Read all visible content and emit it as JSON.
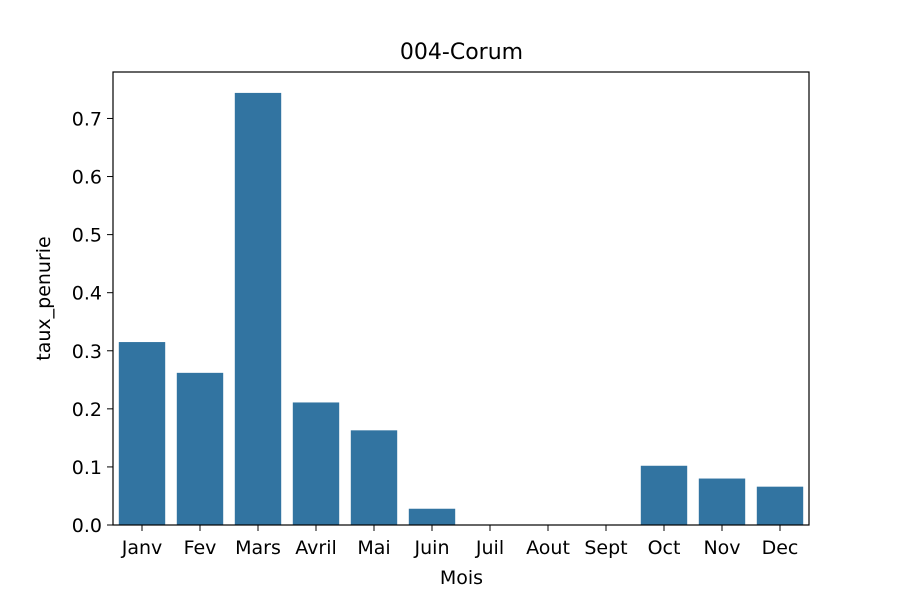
{
  "chart_data": {
    "type": "bar",
    "title": "004-Corum",
    "xlabel": "Mois",
    "ylabel": "taux_penurie",
    "categories": [
      "Janv",
      "Fev",
      "Mars",
      "Avril",
      "Mai",
      "Juin",
      "Juil",
      "Aout",
      "Sept",
      "Oct",
      "Nov",
      "Dec"
    ],
    "values": [
      0.315,
      0.262,
      0.744,
      0.211,
      0.163,
      0.028,
      0.0,
      0.0,
      0.0,
      0.102,
      0.08,
      0.066
    ],
    "ylim": [
      0,
      0.78
    ],
    "yticks": [
      "0.0",
      "0.1",
      "0.2",
      "0.3",
      "0.4",
      "0.5",
      "0.6",
      "0.7"
    ],
    "grid": false,
    "bar_color": "#3274a1"
  }
}
